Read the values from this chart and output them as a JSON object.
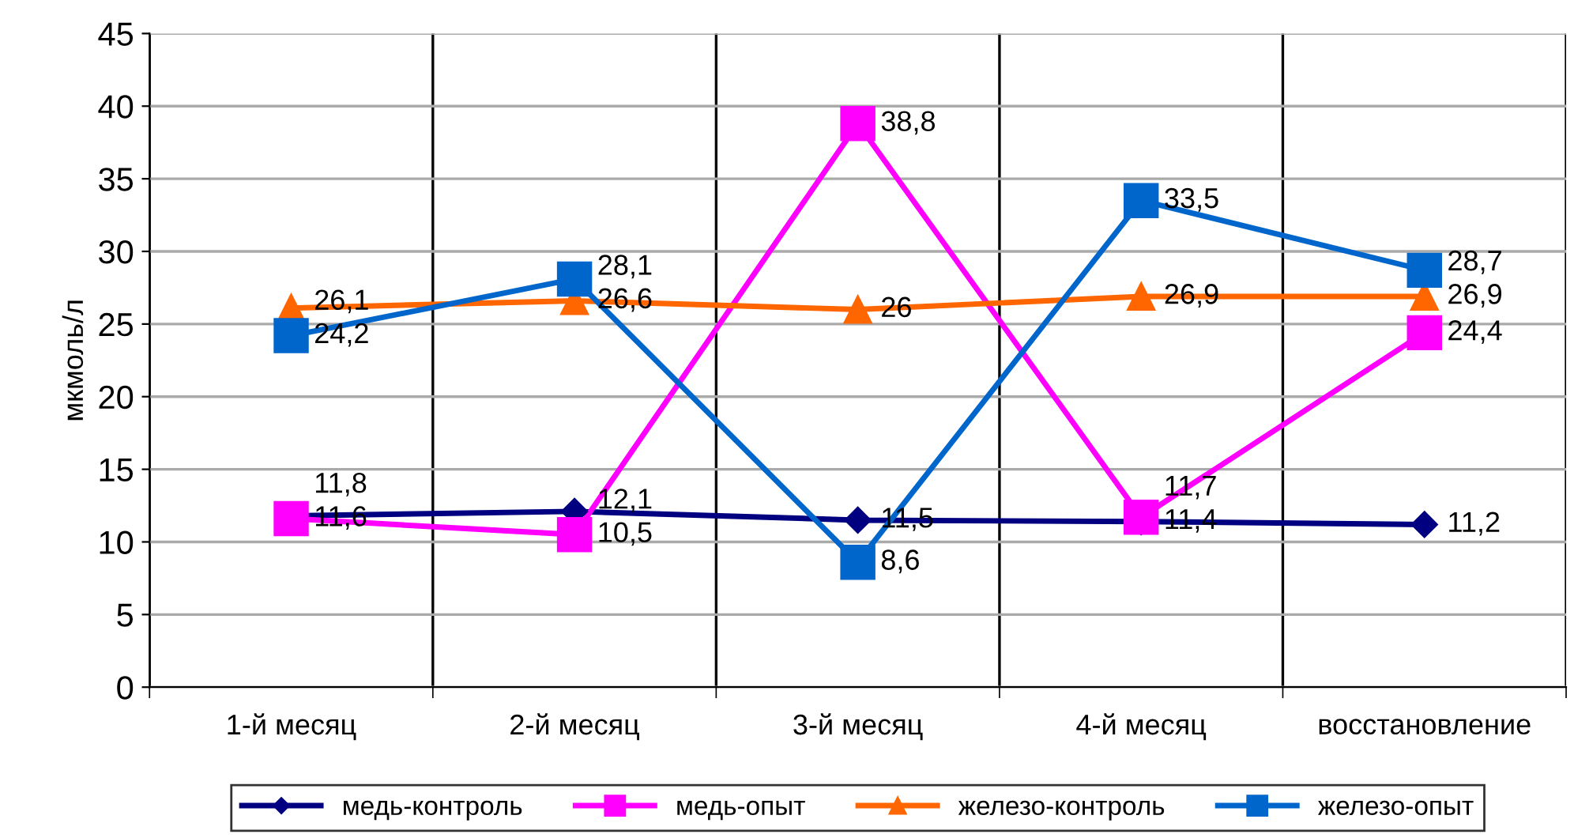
{
  "chart_data": {
    "type": "line",
    "ylabel": "мкмоль/л",
    "categories": [
      "1-й месяц",
      "2-й месяц",
      "3-й месяц",
      "4-й месяц",
      "восстановление"
    ],
    "series": [
      {
        "name": "медь-контроль",
        "color": "#000080",
        "marker": "diamond",
        "values": [
          11.8,
          12.1,
          11.5,
          11.4,
          11.2
        ],
        "value_labels": [
          "11,8",
          "12,1",
          "11,5",
          "11,4",
          "11,2"
        ]
      },
      {
        "name": "медь-опыт",
        "color": "#ff00ff",
        "marker": "square",
        "values": [
          11.6,
          10.5,
          38.8,
          11.7,
          24.4
        ],
        "value_labels": [
          "11,6",
          "10,5",
          "38,8",
          "11,7",
          "24,4"
        ]
      },
      {
        "name": "железо-контроль",
        "color": "#ff6600",
        "marker": "triangle",
        "values": [
          26.1,
          26.6,
          26,
          26.9,
          26.9
        ],
        "value_labels": [
          "26,1",
          "26,6",
          "26",
          "26,9",
          "26,9"
        ]
      },
      {
        "name": "железо-опыт",
        "color": "#0066cc",
        "marker": "square",
        "values": [
          24.2,
          28.1,
          8.6,
          33.5,
          28.7
        ],
        "value_labels": [
          "24,2",
          "28,1",
          "8,6",
          "33,5",
          "28,7"
        ]
      }
    ],
    "ylim": [
      0,
      45
    ],
    "yticks": [
      0,
      5,
      10,
      15,
      20,
      25,
      30,
      35,
      40,
      45
    ],
    "grid": true,
    "legend": "bottom",
    "line_style": "solid"
  }
}
